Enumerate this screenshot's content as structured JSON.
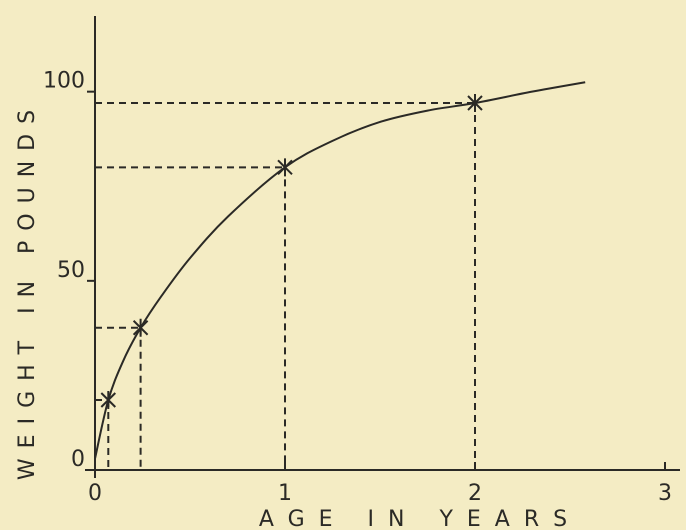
{
  "chart_data": {
    "type": "line",
    "x_label": "AGE IN YEARS",
    "y_label": "WEIGHT IN POUNDS",
    "xlim": [
      0,
      3.1
    ],
    "xticks": [
      0,
      1,
      2,
      3
    ],
    "ylim": [
      0,
      120
    ],
    "yticks": [
      0,
      50,
      100
    ],
    "series": [
      {
        "color": "#2b2a26",
        "x": [
          0,
          0.07,
          0.15,
          0.24,
          0.35,
          0.5,
          0.7,
          1,
          1.25,
          1.5,
          1.75,
          2,
          2.3,
          2.58
        ],
        "values": [
          3,
          18.5,
          29,
          37.6,
          46,
          56,
          67,
          80,
          87,
          92,
          95,
          97,
          100,
          102.5
        ]
      }
    ],
    "points": {
      "x": [
        0.07,
        0.24,
        1,
        2
      ],
      "values": [
        18.5,
        37.6,
        80,
        97
      ]
    }
  }
}
